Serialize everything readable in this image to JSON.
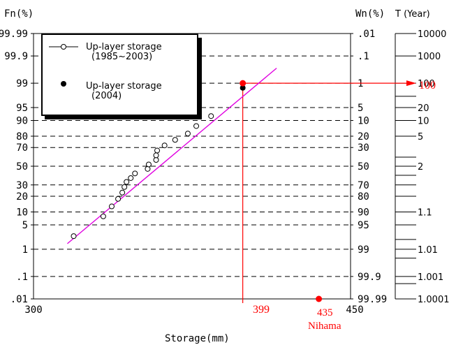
{
  "chart_data": {
    "type": "scatter",
    "x_axis": {
      "label": "Storage(mm)",
      "range": [
        300,
        450
      ],
      "ticks": [
        "300",
        "450"
      ]
    },
    "fn_axis": {
      "label": "Fn(%)",
      "ticks": [
        {
          "p": 99.99,
          "label": "99.99"
        },
        {
          "p": 99.9,
          "label": "99.9"
        },
        {
          "p": 99,
          "label": "99"
        },
        {
          "p": 95,
          "label": "95"
        },
        {
          "p": 90,
          "label": "90"
        },
        {
          "p": 80,
          "label": "80"
        },
        {
          "p": 70,
          "label": "70"
        },
        {
          "p": 50,
          "label": "50"
        },
        {
          "p": 30,
          "label": "30"
        },
        {
          "p": 20,
          "label": "20"
        },
        {
          "p": 10,
          "label": "10"
        },
        {
          "p": 5,
          "label": "5"
        },
        {
          "p": 1,
          "label": "1"
        },
        {
          "p": 0.1,
          "label": ".1"
        },
        {
          "p": 0.01,
          "label": ".01"
        }
      ]
    },
    "wn_axis": {
      "label": "Wn(%)",
      "ticks": [
        {
          "p": 99.99,
          "label": ".01"
        },
        {
          "p": 99.9,
          "label": ".1"
        },
        {
          "p": 99,
          "label": "1"
        },
        {
          "p": 95,
          "label": "5"
        },
        {
          "p": 90,
          "label": "10"
        },
        {
          "p": 80,
          "label": "20"
        },
        {
          "p": 70,
          "label": "30"
        },
        {
          "p": 50,
          "label": "50"
        },
        {
          "p": 30,
          "label": "70"
        },
        {
          "p": 20,
          "label": "80"
        },
        {
          "p": 10,
          "label": "90"
        },
        {
          "p": 5,
          "label": "95"
        },
        {
          "p": 1,
          "label": "99"
        },
        {
          "p": 0.1,
          "label": "99.9"
        },
        {
          "p": 0.01,
          "label": "99.99"
        }
      ]
    },
    "t_axis": {
      "label": "T (Year)",
      "ticks": [
        {
          "p": 99.99,
          "label": "10000"
        },
        {
          "p": 99.9,
          "label": "1000"
        },
        {
          "p": 99,
          "label": "100"
        },
        {
          "p": 95,
          "label": "20"
        },
        {
          "p": 90,
          "label": "10"
        },
        {
          "p": 80,
          "label": "5"
        },
        {
          "p": 50,
          "label": "2"
        },
        {
          "p": 10,
          "label": "1.1"
        },
        {
          "p": 1,
          "label": "1.01"
        },
        {
          "p": 0.1,
          "label": "1.001"
        },
        {
          "p": 0.01,
          "label": "1.0001"
        }
      ],
      "minor_ticks": [
        97.5,
        60,
        40,
        30,
        20,
        5,
        2,
        0.5,
        0.05
      ]
    },
    "series": [
      {
        "name": "Up-layer storage (1985~2003)",
        "marker": "open-circle",
        "points": [
          {
            "x": 319,
            "p": 2.5
          },
          {
            "x": 333,
            "p": 8
          },
          {
            "x": 337,
            "p": 13
          },
          {
            "x": 340,
            "p": 18
          },
          {
            "x": 342,
            "p": 23
          },
          {
            "x": 343,
            "p": 28
          },
          {
            "x": 344,
            "p": 33
          },
          {
            "x": 346,
            "p": 37
          },
          {
            "x": 348,
            "p": 42
          },
          {
            "x": 354,
            "p": 47
          },
          {
            "x": 354.5,
            "p": 52
          },
          {
            "x": 358,
            "p": 57
          },
          {
            "x": 358,
            "p": 62
          },
          {
            "x": 358.5,
            "p": 67
          },
          {
            "x": 362,
            "p": 72
          },
          {
            "x": 367,
            "p": 77
          },
          {
            "x": 373,
            "p": 82
          },
          {
            "x": 377,
            "p": 87
          },
          {
            "x": 384,
            "p": 92
          }
        ]
      },
      {
        "name": "Up-layer storage (2004)",
        "marker": "filled-circle",
        "points": [
          {
            "x": 399,
            "p": 98.6
          }
        ]
      }
    ],
    "fit_line": {
      "color": "#e000e0",
      "points": [
        {
          "x": 316,
          "p": 1.5
        },
        {
          "x": 415,
          "p": 99.7
        }
      ]
    },
    "hundred_year_point": {
      "x": 399,
      "p": 99,
      "color": "#ff0000"
    },
    "nihama_point": {
      "x": 435,
      "p": 0.01,
      "color": "#ff0000"
    },
    "colors": {
      "accent": "#ff0000",
      "fit": "#e000e0",
      "ink": "#000000"
    }
  },
  "legend": {
    "series1_label": "Up-layer storage",
    "series1_years": "(1985~2003)",
    "series2_label": "Up-layer storage",
    "series2_years": "(2004)"
  },
  "annotations": {
    "storage_value": "399",
    "t_value": "100",
    "nihama_value": "435",
    "nihama_label": "Nihama"
  }
}
